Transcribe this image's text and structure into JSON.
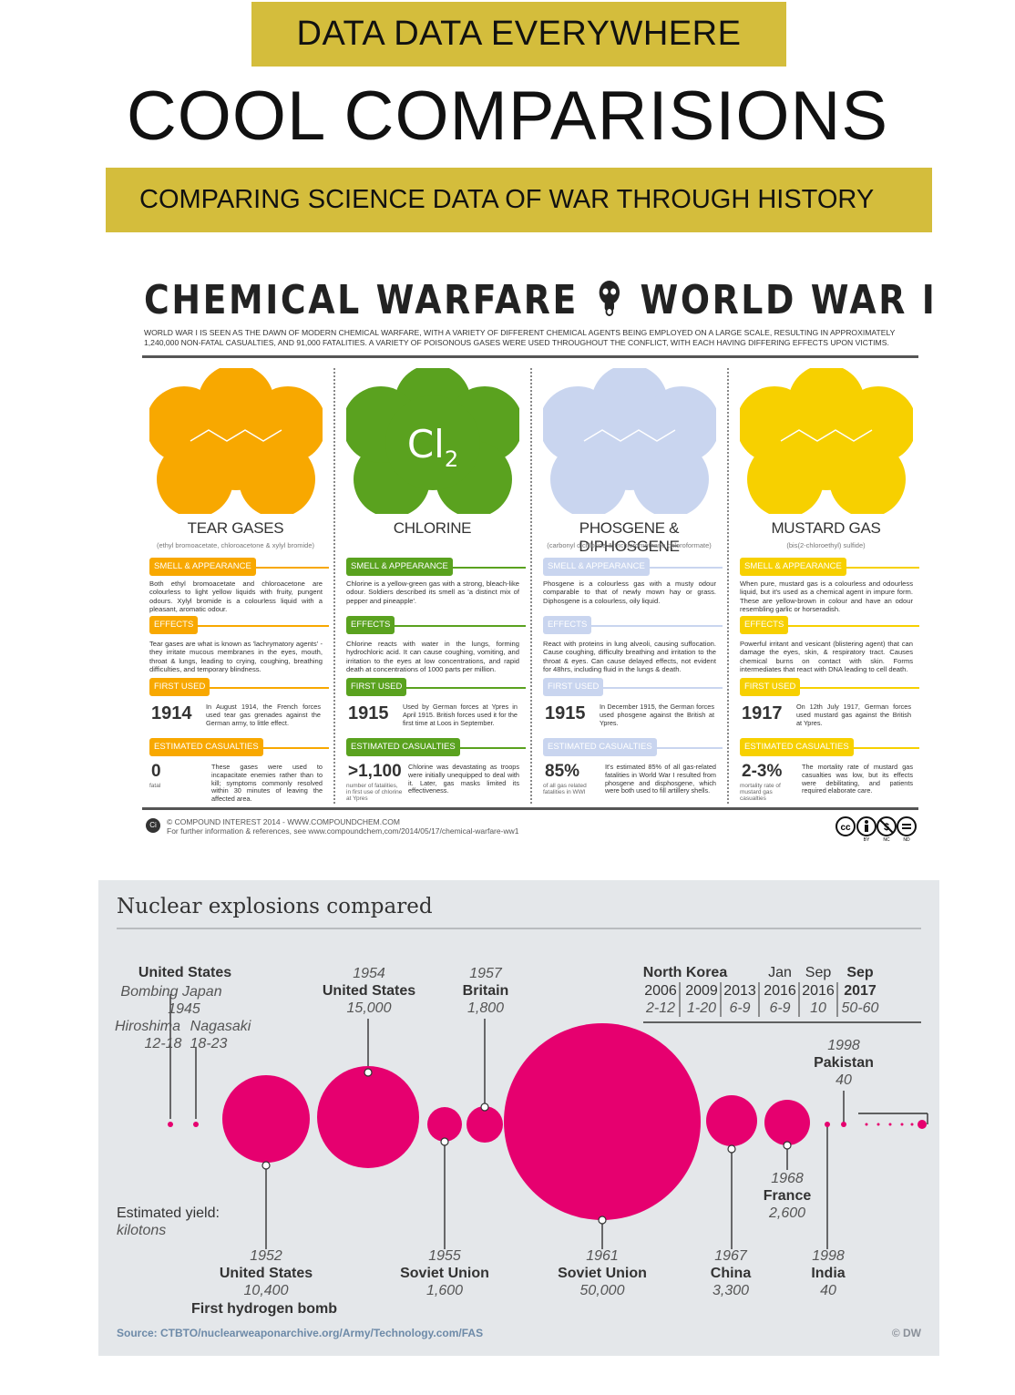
{
  "header": {
    "banner": "DATA DATA EVERYWHERE",
    "title": "COOL COMPARISIONS",
    "subtitle": "COMPARING SCIENCE DATA OF WAR THROUGH HISTORY"
  },
  "chemical": {
    "title_left": "CHEMICAL WARFARE",
    "title_right": "WORLD WAR I",
    "intro": "World War I is seen as the dawn of modern chemical warfare, with a variety of different chemical agents being employed on a large scale, resulting in approximately 1,240,000 non-fatal casualties, and 91,000 fatalities. A variety of poisonous gases were used throughout the conflict, with each having differing effects upon victims.",
    "section_labels": {
      "smell": "SMELL & APPEARANCE",
      "effects": "EFFECTS",
      "first_used": "FIRST USED",
      "casualties": "ESTIMATED CASUALTIES"
    },
    "agents": [
      {
        "name": "TEAR GASES",
        "sub": "(ethyl bromoacetate, chloroacetone & xylyl bromide)",
        "color": "#f8a800",
        "smell": "Both ethyl bromoacetate and chloroacetone are colourless to light yellow liquids with fruity, pungent odours. Xylyl bromide is a colourless liquid with a pleasant, aromatic odour.",
        "effects": "Tear gases are what is known as 'lachrymatory agents' - they irritate mucous membranes in the eyes, mouth, throat & lungs, leading to crying, coughing, breathing difficulties, and temporary blindness.",
        "year": "1914",
        "year_text": "In August 1914, the French forces used tear gas grenades against the German army, to little effect.",
        "stat": "0",
        "stat_note": "fatal",
        "stat_text": "These gases were used to incapacitate enemies rather than to kill; symptoms commonly resolved within 30 minutes of leaving the affected area."
      },
      {
        "name": "CHLORINE",
        "sub": "",
        "formula": "Cl",
        "formula_sub": "2",
        "color": "#5aa21f",
        "smell": "Chlorine is a yellow-green gas with a strong, bleach-like odour. Soldiers described its smell as 'a distinct mix of pepper and pineapple'.",
        "effects": "Chlorine reacts with water in the lungs, forming hydrochloric acid. It can cause coughing, vomiting, and irritation to the eyes at low concentrations, and rapid death at concentrations of 1000 parts per million.",
        "year": "1915",
        "year_text": "Used by German forces at Ypres in April 1915. British forces used it for the first time at Loos in September.",
        "stat": ">1,100",
        "stat_note": "number of fatalities, in first use of chlorine at Ypres",
        "stat_text": "Chlorine was devastating as troops were initially unequipped to deal with it. Later, gas masks limited its effectiveness."
      },
      {
        "name": "PHOSGENE & DIPHOSGENE",
        "sub": "(carbonyl dichloride & trichloromethane chloroformate)",
        "color": "#c9d5ef",
        "smell": "Phosgene is a colourless gas with a musty odour comparable to that of newly mown hay or grass. Diphosgene is a colourless, oily liquid.",
        "effects": "React with proteins in lung alveoli, causing suffocation. Cause coughing, difficulty breathing and irritation to the throat & eyes. Can cause delayed effects, not evident for 48hrs, including fluid in the lungs & death.",
        "year": "1915",
        "year_text": "In December 1915, the German forces used phosgene against the British at Ypres.",
        "stat": "85%",
        "stat_note": "of all gas related fatalities in WWI",
        "stat_text": "It's estimated 85% of all gas-related fatalities in World War I resulted from phosgene and disphosgene, which were both used to fill artillery shells."
      },
      {
        "name": "MUSTARD GAS",
        "sub": "(bis(2-chloroethyl) sulfide)",
        "color": "#f7d000",
        "smell": "When pure, mustard gas is a colourless and odourless liquid, but it's used as a chemical agent in impure form. These are yellow-brown in colour and have an odour resembling garlic or horseradish.",
        "effects": "Powerful irritant and vesicant (blistering agent) that can damage the eyes, skin, & respiratory tract. Causes chemical burns on contact with skin. Forms intermediates that react with DNA leading to cell death.",
        "year": "1917",
        "year_text": "On 12th July 1917, German forces used mustard gas against the British at Ypres.",
        "stat": "2-3%",
        "stat_note": "mortality rate of mustard gas casualties",
        "stat_text": "The mortality rate of mustard gas casualties was low, but its effects were debilitating, and patients required elaborate care."
      }
    ],
    "credit_line1": "© COMPOUND INTEREST 2014 - WWW.COMPOUNDCHEM.COM",
    "credit_line2": "For further information & references, see www.compoundchem,com/2014/05/17/chemical-warfare-ww1",
    "logo_text": "Ci",
    "cc_labels": [
      "BY",
      "NC",
      "ND"
    ]
  },
  "nuclear": {
    "title": "Nuclear explosions compared",
    "yield_label_1": "Estimated yield:",
    "yield_label_2": "kilotons",
    "source": "Source: CTBTO/nuclearweaponarchive.org/Army/Technology.com/FAS",
    "copyright": "© DW",
    "highlight_color": "#e6006f",
    "labels": {
      "us45_country": "United States",
      "us45_event": "Bombing Japan",
      "us45_year": "1945",
      "hiroshima": "Hiroshima",
      "nagasaki": "Nagasaki",
      "hiroshima_yield": "12-18",
      "nagasaki_yield": "18-23",
      "us52_year": "1952",
      "us52_country": "United States",
      "us52_yield": "10,400",
      "us52_note": "First hydrogen bomb",
      "us54_year": "1954",
      "us54_country": "United States",
      "us54_yield": "15,000",
      "su55_year": "1955",
      "su55_country": "Soviet Union",
      "su55_yield": "1,600",
      "gb57_year": "1957",
      "gb57_country": "Britain",
      "gb57_yield": "1,800",
      "su61_year": "1961",
      "su61_country": "Soviet Union",
      "su61_yield": "50,000",
      "cn67_year": "1967",
      "cn67_country": "China",
      "cn67_yield": "3,300",
      "fr68_year": "1968",
      "fr68_country": "France",
      "fr68_yield": "2,600",
      "in98_year": "1998",
      "in98_country": "India",
      "in98_yield": "40",
      "pk98_year": "1998",
      "pk98_country": "Pakistan",
      "pk98_yield": "40",
      "nk_country": "North Korea",
      "nk_months": [
        "",
        "",
        "",
        "Jan",
        "Sep",
        "Sep"
      ],
      "nk_years": [
        "2006",
        "2009",
        "2013",
        "2016",
        "2016",
        "2017"
      ],
      "nk_yields": [
        "2-12",
        "1-20",
        "6-9",
        "6-9",
        "10",
        "50-60"
      ]
    }
  }
}
